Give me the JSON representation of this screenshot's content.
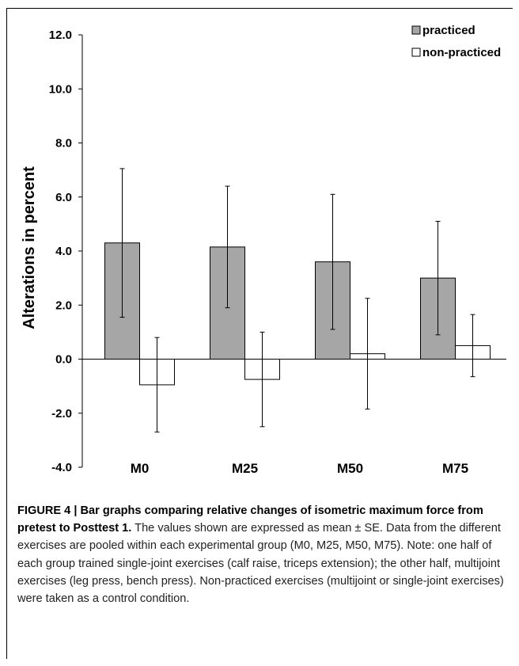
{
  "chart_data": {
    "type": "bar",
    "title": "",
    "xlabel": "",
    "ylabel": "Alterations in percent",
    "ylim": [
      -4.0,
      12.0
    ],
    "yticks": [
      "12.0",
      "10.0",
      "8.0",
      "6.0",
      "4.0",
      "2.0",
      "0.0",
      "-2.0",
      "-4.0"
    ],
    "categories": [
      "M0",
      "M25",
      "M50",
      "M75"
    ],
    "series": [
      {
        "name": "practiced",
        "color": "#a6a6a6",
        "values": [
          4.3,
          4.15,
          3.6,
          3.0
        ],
        "error": [
          2.75,
          2.25,
          2.5,
          2.1
        ]
      },
      {
        "name": "non-practiced",
        "color": "#ffffff",
        "values": [
          -0.95,
          -0.75,
          0.2,
          0.5
        ],
        "error": [
          1.75,
          1.75,
          2.05,
          1.15
        ]
      }
    ],
    "legend_position": "top-right",
    "grid": false
  },
  "caption": {
    "bold": "FIGURE 4 | Bar graphs comparing relative changes of isometric maximum force from pretest to Posttest 1.",
    "text": " The values shown are expressed as mean ± SE. Data from the different exercises are pooled within each experimental group (M0, M25, M50, M75). Note: one half of each group trained single-joint exercises (calf raise, triceps extension); the other half, multijoint exercises (leg press, bench press). Non-practiced exercises (multijoint or single-joint exercises) were taken as a control condition."
  }
}
